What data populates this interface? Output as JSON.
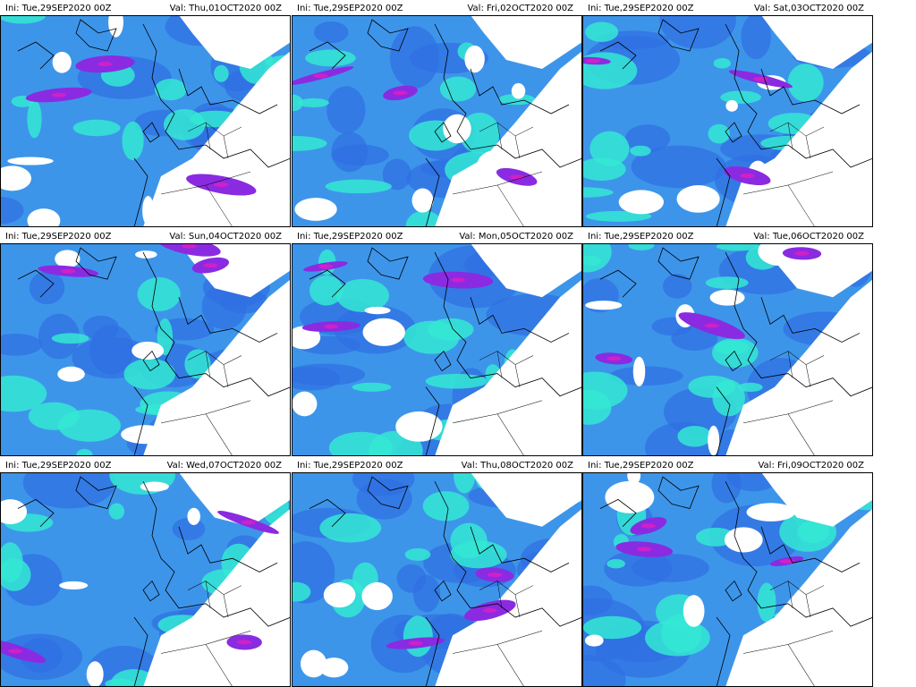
{
  "panels": [
    {
      "init": "Ini: Tue,29SEP2020 00Z",
      "valid": "Val: Thu,01OCT2020 00Z"
    },
    {
      "init": "Ini: Tue,29SEP2020 00Z",
      "valid": "Val: Fri,02OCT2020 00Z"
    },
    {
      "init": "Ini: Tue,29SEP2020 00Z",
      "valid": "Val: Sat,03OCT2020 00Z"
    },
    {
      "init": "Ini: Tue,29SEP2020 00Z",
      "valid": "Val: Sun,04OCT2020 00Z"
    },
    {
      "init": "Ini: Tue,29SEP2020 00Z",
      "valid": "Val: Mon,05OCT2020 00Z"
    },
    {
      "init": "Ini: Tue,29SEP2020 00Z",
      "valid": "Val: Tue,06OCT2020 00Z"
    },
    {
      "init": "Ini: Tue,29SEP2020 00Z",
      "valid": "Val: Wed,07OCT2020 00Z"
    },
    {
      "init": "Ini: Tue,29SEP2020 00Z",
      "valid": "Val: Thu,08OCT2020 00Z"
    },
    {
      "init": "Ini: Tue,29SEP2020 00Z",
      "valid": "Val: Fri,09OCT2020 00Z"
    }
  ]
}
